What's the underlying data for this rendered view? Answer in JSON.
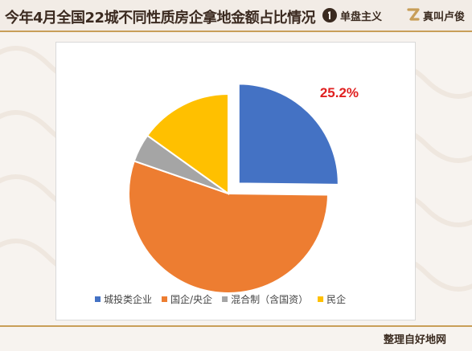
{
  "header": {
    "title": "今年4月全国22城不同性质房企拿地金额占比情况",
    "brand1": {
      "icon": "one-badge-icon",
      "label": "单盘主义",
      "color": "#3a2a1f"
    },
    "brand2": {
      "icon": "z-logo-icon",
      "label": "真叫卢俊",
      "color": "#c89e58"
    }
  },
  "footer": {
    "text": "整理自好地网"
  },
  "colors": {
    "accent_gold": "#c89e58",
    "label_red": "#e02020"
  },
  "chart_data": {
    "type": "pie",
    "categories": [
      "城投类企业",
      "国企/央企",
      "混合制（含国资）",
      "民企"
    ],
    "values": [
      25.2,
      55.1,
      4.6,
      15.1
    ],
    "colors": [
      "#4472c4",
      "#ed7d31",
      "#a5a5a5",
      "#ffc000"
    ],
    "exploded": [
      true,
      false,
      false,
      false
    ],
    "data_labels": [
      "25.2%",
      "",
      "",
      ""
    ],
    "legend": {
      "position": "bottom"
    }
  }
}
